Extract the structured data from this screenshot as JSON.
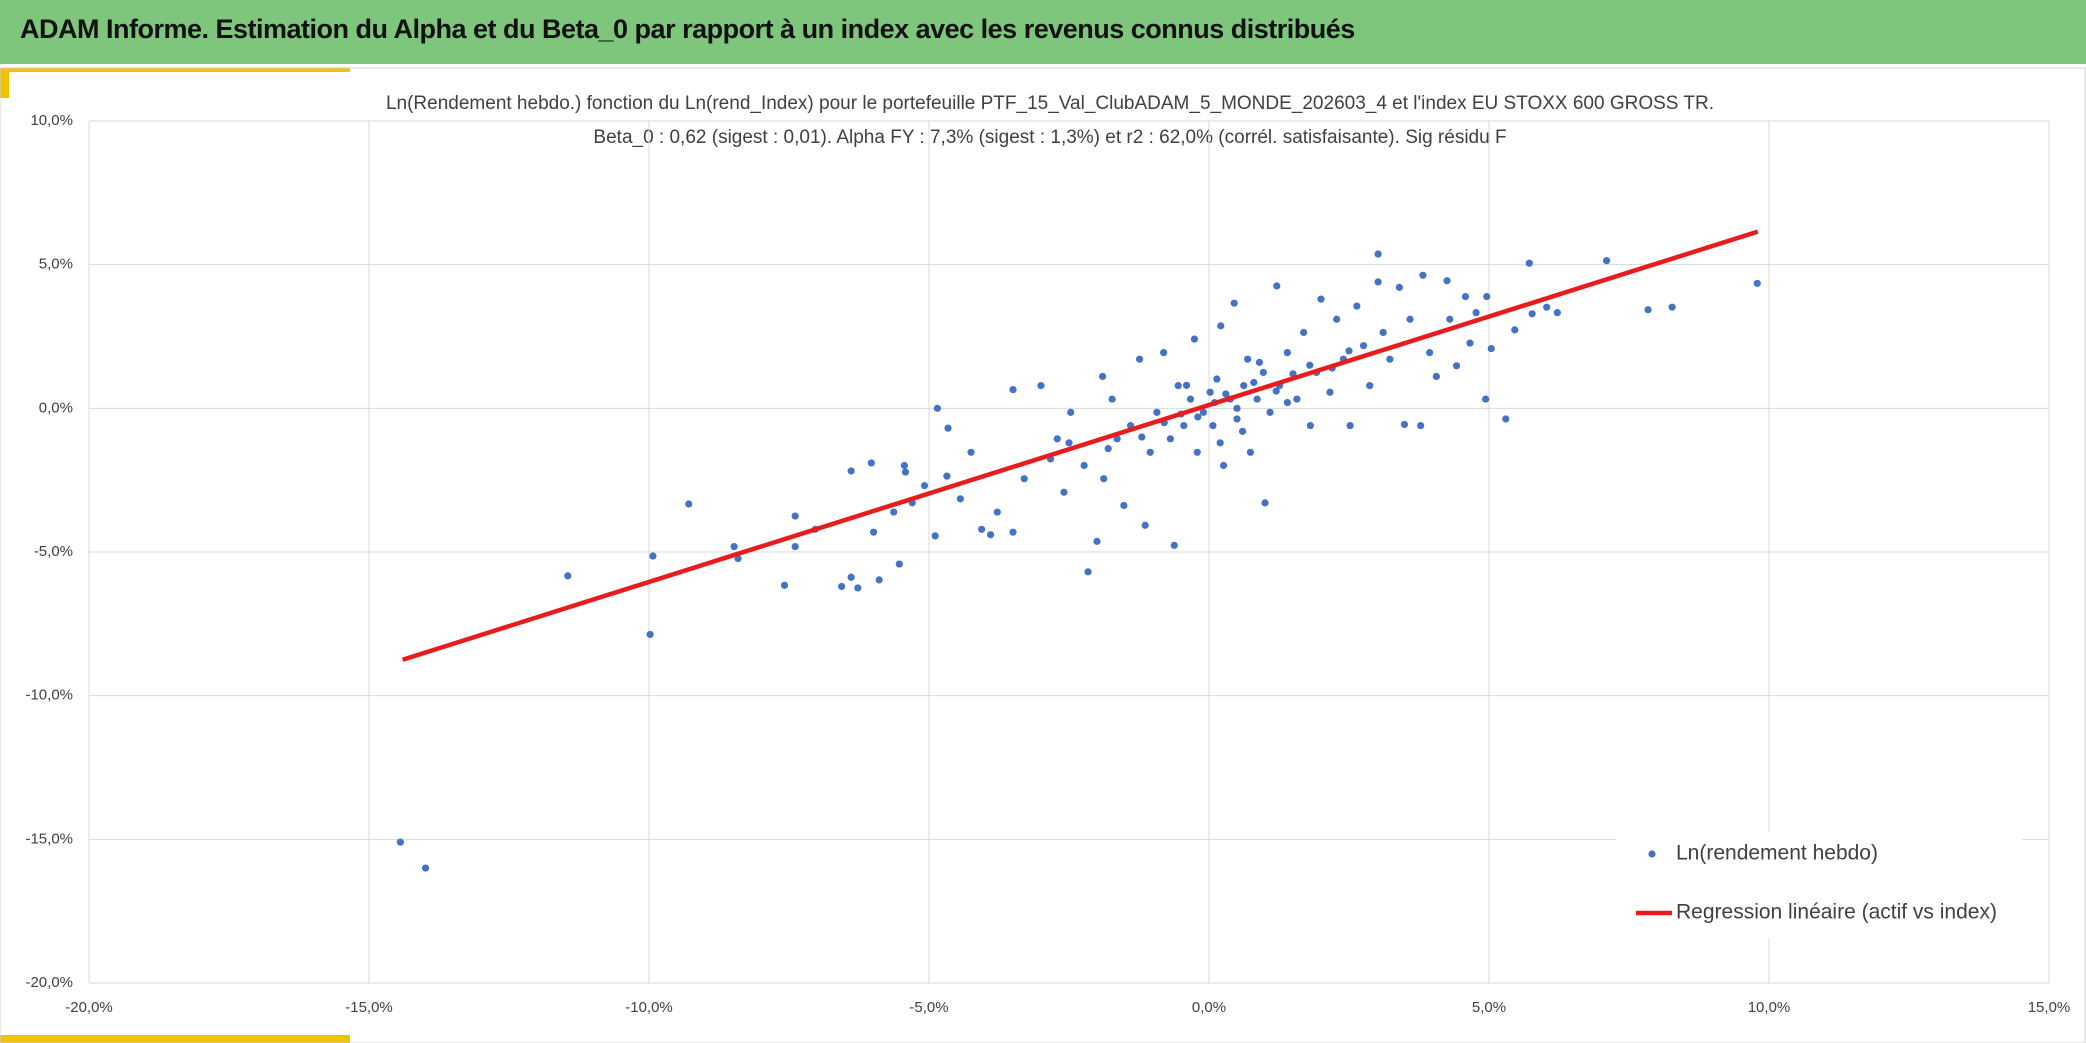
{
  "header": {
    "title": "ADAM Informe. Estimation du Alpha et du Beta_0 par rapport à un index avec les revenus connus distribués"
  },
  "chart_data": {
    "type": "scatter",
    "title": "Ln(Rendement hebdo.) fonction du Ln(rend_Index) pour le portefeuille PTF_15_Val_ClubADAM_5_MONDE_202603_4 et l'index EU STOXX 600 GROSS TR.",
    "subtitle": "Beta_0 : 0,62 (sigest : 0,01). Alpha FY : 7,3% (sigest : 1,3%) et r2 : 62,0% (corrél. satisfaisante). Sig résidu F",
    "xlim": [
      -20,
      15
    ],
    "xticks": [
      {
        "value": -20,
        "label": "-20,0%"
      },
      {
        "value": -15,
        "label": "-15,0%"
      },
      {
        "value": -10,
        "label": "-10,0%"
      },
      {
        "value": -5,
        "label": "-5,0%"
      },
      {
        "value": 0,
        "label": "0,0%"
      },
      {
        "value": 5,
        "label": "5,0%"
      },
      {
        "value": 10,
        "label": "10,0%"
      },
      {
        "value": 15,
        "label": "15,0%"
      }
    ],
    "ylim": [
      -20,
      10
    ],
    "yticks": [
      {
        "value": -20,
        "label": "-20,0%"
      },
      {
        "value": -15,
        "label": "-15,0%"
      },
      {
        "value": -10,
        "label": "-10,0%"
      },
      {
        "value": -5,
        "label": "-5,0%"
      },
      {
        "value": 0,
        "label": "0,0%"
      },
      {
        "value": 5,
        "label": "5,0%"
      },
      {
        "value": 10,
        "label": "10,0%"
      }
    ],
    "grid": true,
    "legend": "lower right",
    "series": [
      {
        "name": "Ln(rendement hebdo)",
        "color": "#4472c4",
        "x": [
          -14.44,
          -13.99,
          -11.45,
          -9.98,
          -9.93,
          -9.29,
          -8.48,
          -8.41,
          -7.58,
          -7.39,
          -7.39,
          -7.03,
          -6.56,
          -6.39,
          -6.27,
          -6.39,
          -6.03,
          -5.89,
          -5.99,
          -5.63,
          -5.53,
          -5.44,
          -5.42,
          -5.3,
          -5.08,
          -4.89,
          -4.85,
          -4.66,
          -4.68,
          -4.44,
          -4.25,
          -4.06,
          -3.9,
          -3.78,
          -3.5,
          -3.5,
          -3.3,
          -3.0,
          -2.83,
          -2.71,
          -2.59,
          -2.47,
          -2.23,
          -2.16,
          -2.0,
          -1.9,
          -1.88,
          -1.73,
          -1.64,
          -1.52,
          -1.4,
          -1.24,
          -1.14,
          -1.05,
          -0.93,
          -0.81,
          -0.69,
          -0.62,
          -0.55,
          -0.45,
          -0.33,
          -0.26,
          -0.21,
          -0.1,
          0.02,
          0.07,
          0.14,
          0.21,
          0.26,
          0.38,
          0.45,
          0.5,
          0.62,
          0.69,
          0.74,
          0.86,
          0.97,
          1.0,
          1.09,
          1.21,
          1.26,
          1.4,
          1.57,
          1.69,
          1.81,
          1.92,
          2.0,
          2.16,
          2.28,
          2.4,
          2.52,
          2.64,
          2.76,
          2.87,
          3.02,
          3.02,
          3.11,
          3.23,
          3.4,
          3.49,
          3.59,
          3.78,
          3.82,
          3.94,
          4.06,
          4.25,
          4.3,
          4.42,
          4.58,
          4.66,
          4.77,
          4.94,
          4.96,
          5.04,
          5.3,
          5.46,
          5.72,
          5.77,
          6.03,
          6.22,
          7.1,
          7.84,
          8.27,
          9.79,
          0.3,
          0.5,
          -0.2,
          0.8,
          1.2,
          -0.5,
          0.1,
          1.5,
          -0.8,
          0.6,
          1.8,
          -1.2,
          2.2,
          -1.8,
          0.9,
          1.4,
          -0.4,
          2.5,
          -2.5,
          0.2
        ],
        "values": [
          -15.1,
          -16.0,
          -5.83,
          -7.87,
          -5.14,
          -3.33,
          -4.81,
          -5.23,
          -6.16,
          -3.75,
          -4.81,
          -4.21,
          -6.2,
          -5.88,
          -6.25,
          -2.18,
          -1.9,
          -5.97,
          -4.31,
          -3.61,
          -5.42,
          -1.99,
          -2.22,
          -3.29,
          -2.69,
          -4.44,
          0.0,
          -0.69,
          -2.36,
          -3.15,
          -1.53,
          -4.21,
          -4.4,
          -3.61,
          0.65,
          -4.31,
          -2.45,
          0.79,
          -1.76,
          -1.06,
          -2.92,
          -0.14,
          -1.99,
          -5.69,
          -4.63,
          1.11,
          -2.45,
          0.32,
          -1.06,
          -3.38,
          -0.6,
          1.71,
          -4.07,
          -1.53,
          -0.14,
          1.94,
          -1.06,
          -4.77,
          0.79,
          -0.6,
          0.32,
          2.41,
          -1.53,
          -0.14,
          0.56,
          -0.6,
          1.02,
          2.87,
          -1.99,
          0.32,
          3.66,
          -0.37,
          0.79,
          1.71,
          -1.53,
          0.32,
          1.25,
          -3.29,
          -0.14,
          4.26,
          0.79,
          1.94,
          0.32,
          2.64,
          -0.6,
          1.25,
          3.8,
          0.56,
          3.1,
          1.71,
          -0.6,
          3.56,
          2.18,
          0.79,
          5.37,
          4.4,
          2.64,
          1.71,
          4.21,
          -0.56,
          3.1,
          -0.6,
          4.63,
          1.94,
          1.11,
          4.44,
          3.1,
          1.48,
          3.89,
          2.27,
          3.33,
          0.32,
          3.89,
          2.08,
          -0.37,
          2.73,
          5.05,
          3.29,
          3.52,
          3.33,
          5.14,
          3.43,
          3.52,
          4.35,
          0.5,
          0.0,
          -0.3,
          0.9,
          0.6,
          -0.2,
          0.2,
          1.2,
          -0.5,
          -0.8,
          1.5,
          -1.0,
          1.4,
          -1.4,
          1.6,
          0.2,
          0.8,
          2.0,
          -1.2,
          -1.2
        ]
      },
      {
        "name": "Regression linéaire (actif vs index)",
        "color": "#e81c1c",
        "type": "line",
        "x": [
          -14.4,
          9.8
        ],
        "values": [
          -8.75,
          6.15
        ]
      }
    ]
  }
}
